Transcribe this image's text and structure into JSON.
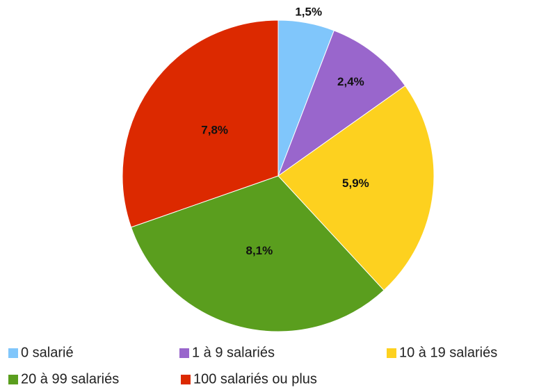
{
  "chart_data": {
    "type": "pie",
    "categories": [
      "0 salarié",
      "1 à 9 salariés",
      "10 à 19 salariés",
      "20 à 99 salariés",
      "100 salariés ou plus"
    ],
    "values": [
      1.5,
      2.4,
      5.9,
      8.1,
      7.8
    ],
    "value_labels": [
      "1,5%",
      "2,4%",
      "5,9%",
      "8,1%",
      "7,8%"
    ],
    "colors": [
      "#80c6fb",
      "#9966cc",
      "#fdd11f",
      "#5a9e1e",
      "#dc2900"
    ],
    "legend": "bottom"
  }
}
